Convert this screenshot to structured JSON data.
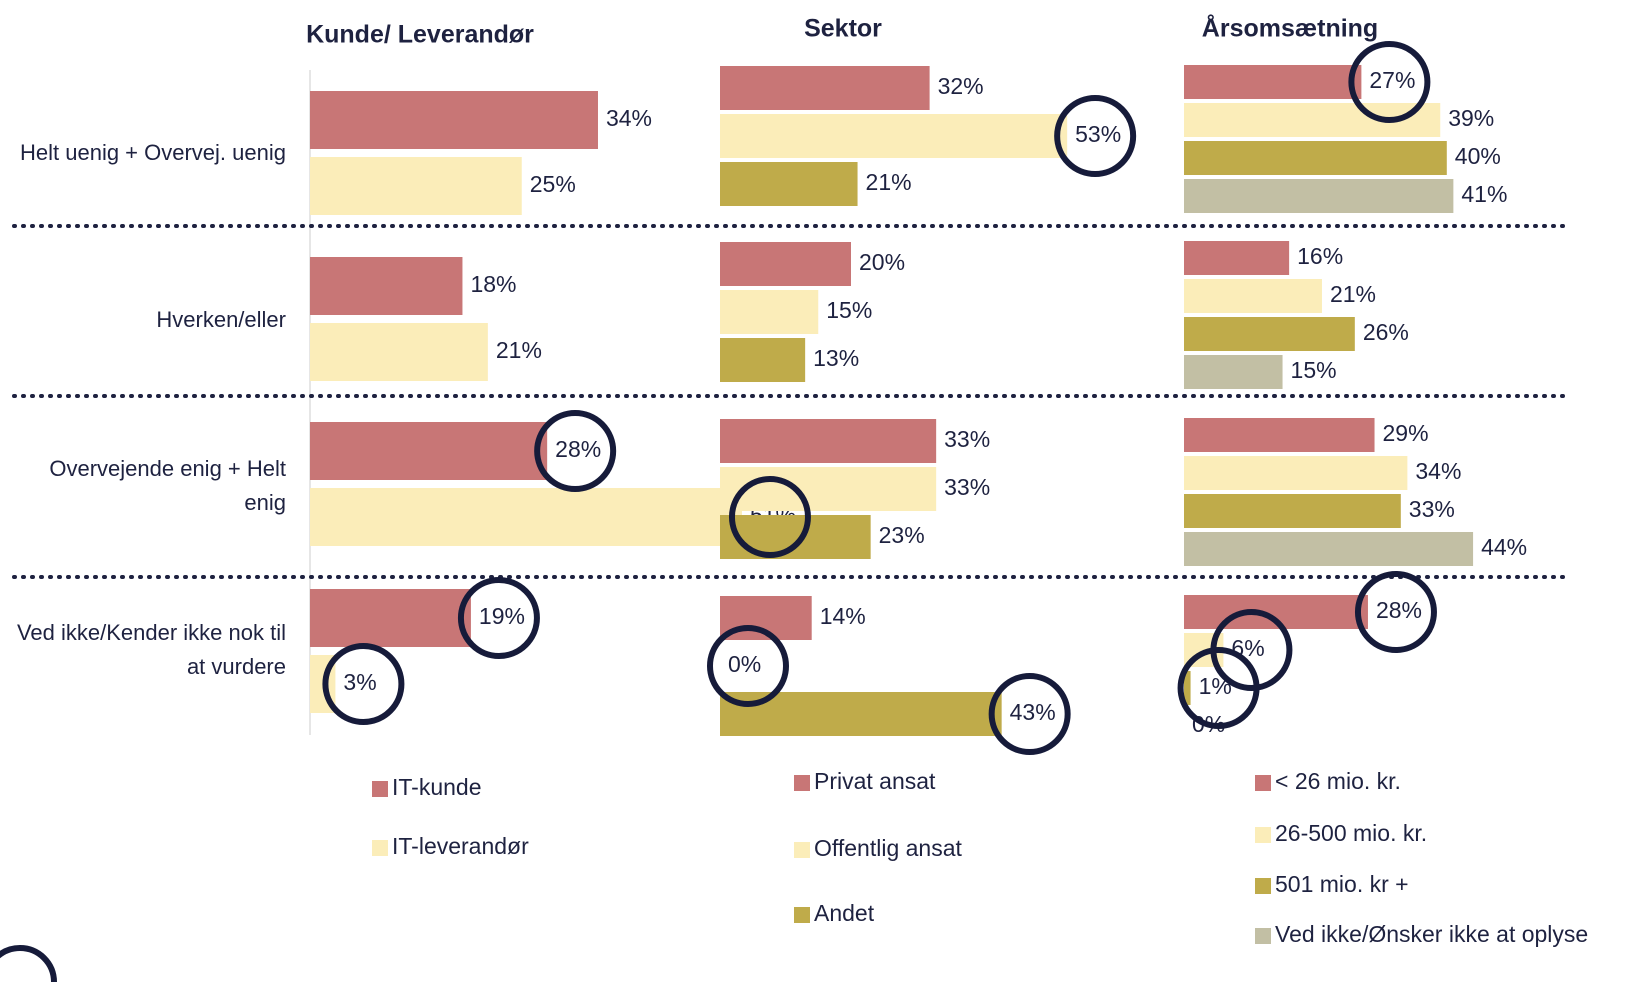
{
  "chart_data": [
    {
      "type": "bar",
      "title": "Kunde/ Leverandør",
      "categories": [
        "Helt uenig + Overvej. uenig",
        "Hverken/eller",
        "Overvejende enig + Helt enig",
        "Ved ikke/Kender ikke nok til at vurdere"
      ],
      "series": [
        {
          "name": "IT-kunde",
          "color": "#c87676",
          "values": [
            34,
            18,
            28,
            19
          ],
          "value_labels": [
            "34%",
            "18%",
            "28%",
            "19%"
          ],
          "circled": [
            2,
            3
          ]
        },
        {
          "name": "IT-leverandør",
          "color": "#fbedb9",
          "values": [
            25,
            21,
            51,
            3
          ],
          "value_labels": [
            "25%",
            "21%",
            "51%",
            "3%"
          ],
          "circled": [
            2,
            3
          ]
        }
      ]
    },
    {
      "type": "bar",
      "title": "Sektor",
      "series": [
        {
          "name": "Privat ansat",
          "color": "#c87676",
          "values": [
            32,
            20,
            33,
            14
          ],
          "value_labels": [
            "32%",
            "20%",
            "33%",
            "14%"
          ],
          "circled": []
        },
        {
          "name": "Offentlig ansat",
          "color": "#fbedb9",
          "values": [
            53,
            15,
            33,
            0
          ],
          "value_labels": [
            "53%",
            "15%",
            "33%",
            "0%"
          ],
          "circled": [
            0,
            3
          ]
        },
        {
          "name": "Andet",
          "color": "#bfab4a",
          "values": [
            21,
            13,
            23,
            43
          ],
          "value_labels": [
            "21%",
            "13%",
            "23%",
            "43%"
          ],
          "circled": [
            3
          ]
        }
      ]
    },
    {
      "type": "bar",
      "title": "Årsomsætning",
      "series": [
        {
          "name": "< 26 mio. kr.",
          "color": "#c87676",
          "values": [
            27,
            16,
            29,
            28
          ],
          "value_labels": [
            "27%",
            "16%",
            "29%",
            "28%"
          ],
          "circled": [
            0,
            3
          ]
        },
        {
          "name": "26-500 mio. kr.",
          "color": "#fbedb9",
          "values": [
            39,
            21,
            34,
            6
          ],
          "value_labels": [
            "39%",
            "21%",
            "34%",
            "6%"
          ],
          "circled": [
            3
          ]
        },
        {
          "name": "501 mio. kr +",
          "color": "#bfab4a",
          "values": [
            40,
            26,
            33,
            1
          ],
          "value_labels": [
            "40%",
            "26%",
            "33%",
            "1%"
          ],
          "circled": [
            3
          ]
        },
        {
          "name": "Ved ikke/Ønsker ikke at oplyse",
          "color": "#c2bfa4",
          "values": [
            41,
            15,
            44,
            0
          ],
          "value_labels": [
            "41%",
            "15%",
            "44%",
            "0%"
          ],
          "circled": []
        }
      ]
    }
  ]
}
